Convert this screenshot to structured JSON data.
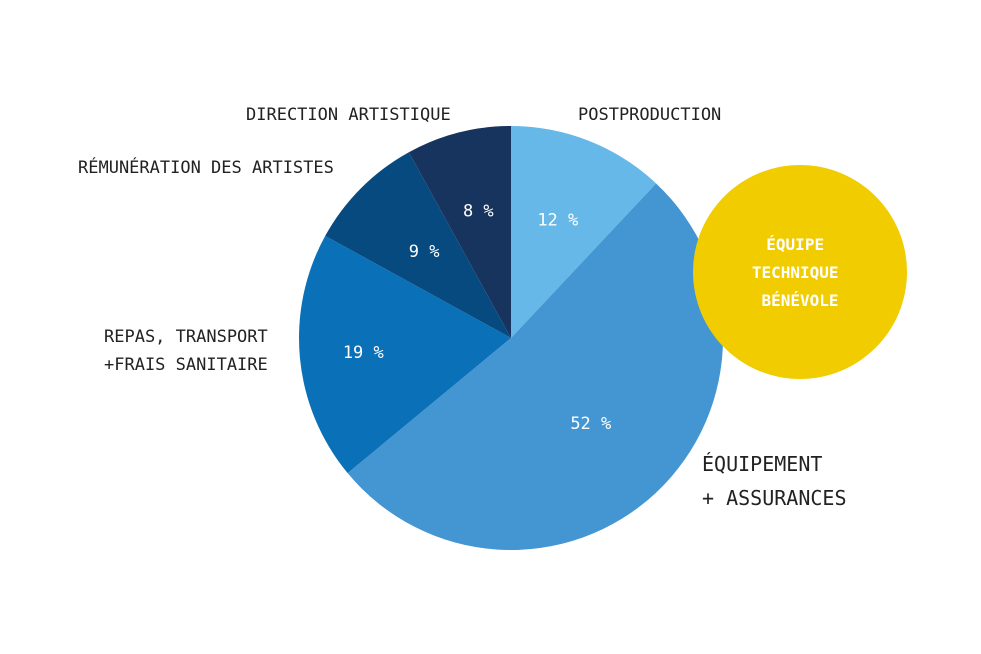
{
  "chart_data": {
    "type": "pie",
    "slices": [
      {
        "label_lines": [
          "POSTPRODUCTION"
        ],
        "value": 12,
        "value_label": "12 %",
        "color": "#66b8e8"
      },
      {
        "label_lines": [
          "ÉQUIPEMENT",
          "+ ASSURANCES"
        ],
        "value": 52,
        "value_label": "52 %",
        "color": "#4496d3"
      },
      {
        "label_lines": [
          "REPAS, TRANSPORT",
          "+FRAIS SANITAIRE"
        ],
        "value": 19,
        "value_label": "19 %",
        "color": "#0a70b8"
      },
      {
        "label_lines": [
          "RÉMUNÉRATION DES ARTISTES"
        ],
        "value": 9,
        "value_label": "9 %",
        "color": "#074a80"
      },
      {
        "label_lines": [
          "DIRECTION ARTISTIQUE"
        ],
        "value": 8,
        "value_label": "8 %",
        "color": "#17345e"
      }
    ],
    "extra_bubble": {
      "label_lines": [
        "ÉQUIPE",
        "TECHNIQUE",
        "BÉNÉVOLE"
      ],
      "color": "#f0cc00"
    }
  }
}
